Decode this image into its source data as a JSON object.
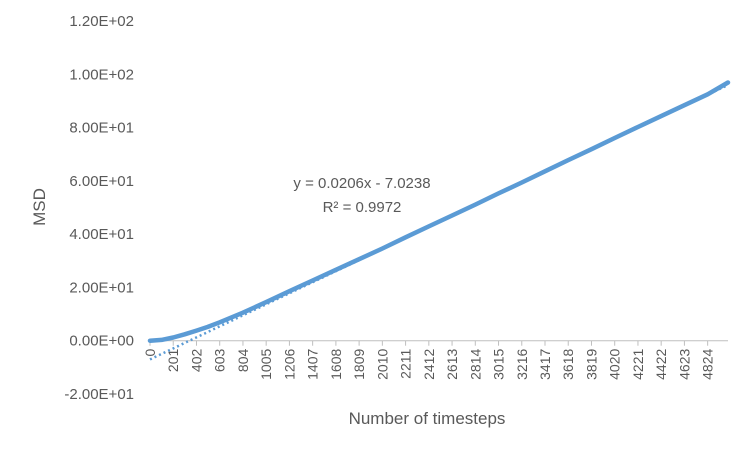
{
  "chart_data": {
    "type": "line",
    "xlabel": "Number of timesteps",
    "ylabel": "MSD",
    "ylim": [
      -20,
      120
    ],
    "xlim": [
      0,
      5000
    ],
    "grid": false,
    "legend": "none",
    "y_tick_values": [
      -20,
      0,
      20,
      40,
      60,
      80,
      100,
      120
    ],
    "y_tick_labels": [
      "-2.00E+01",
      "0.00E+00",
      "2.00E+01",
      "4.00E+01",
      "6.00E+01",
      "8.00E+01",
      "1.00E+02",
      "1.20E+02"
    ],
    "x_tick_labels": [
      "0",
      "201",
      "402",
      "603",
      "804",
      "1005",
      "1206",
      "1407",
      "1608",
      "1809",
      "2010",
      "2211",
      "2412",
      "2613",
      "2814",
      "3015",
      "3216",
      "3417",
      "3618",
      "3819",
      "4020",
      "4221",
      "4422",
      "4623",
      "4824"
    ],
    "series": [
      {
        "color": "#5B9BD5",
        "x": [
          0,
          100,
          201,
          300,
          402,
          500,
          603,
          804,
          1005,
          1206,
          1407,
          1608,
          1809,
          2010,
          2211,
          2412,
          2613,
          2814,
          3015,
          3216,
          3417,
          3618,
          3819,
          4020,
          4221,
          4422,
          4623,
          4824,
          5000
        ],
        "y": [
          0,
          0.3,
          1.2,
          2.4,
          3.8,
          5.2,
          6.9,
          10.5,
          14.5,
          18.6,
          22.6,
          26.6,
          30.6,
          34.6,
          38.8,
          42.9,
          47.0,
          51.1,
          55.3,
          59.4,
          63.6,
          67.8,
          71.9,
          76.1,
          80.2,
          84.3,
          88.4,
          92.5,
          96.9
        ]
      }
    ],
    "trendline": {
      "type": "linear",
      "slope": 0.0206,
      "intercept": -7.0238,
      "equation": "y = 0.0206x - 7.0238",
      "r_squared": "R² = 0.9972",
      "color": "#5B9BD5",
      "style": "dotted"
    }
  }
}
